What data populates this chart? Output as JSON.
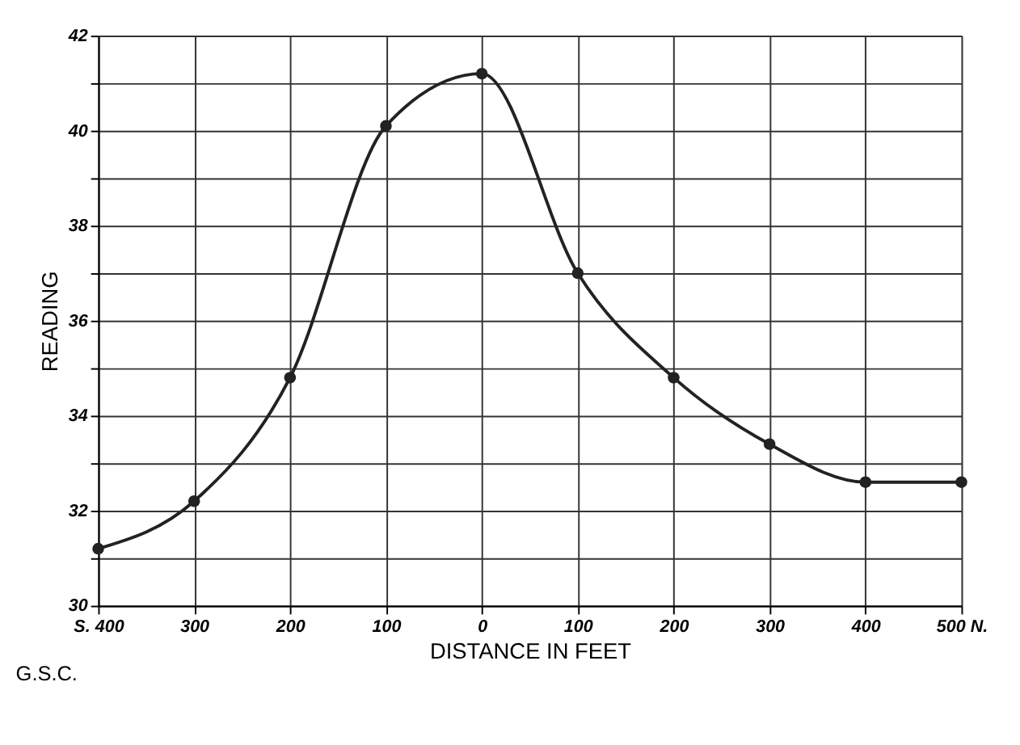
{
  "chart_data": {
    "type": "line",
    "xlabel": "DISTANCE IN FEET",
    "ylabel": "READING",
    "x": [
      -400,
      -300,
      -200,
      -100,
      0,
      100,
      200,
      300,
      400,
      500
    ],
    "series": [
      {
        "color": "#222222",
        "values": [
          31.2,
          32.2,
          34.8,
          40.1,
          41.2,
          37.0,
          34.8,
          33.4,
          32.6,
          32.6
        ]
      }
    ],
    "xlim": [
      -400,
      500
    ],
    "xticks": [
      {
        "value": -400,
        "label": "S. 400"
      },
      {
        "value": -300,
        "label": "300"
      },
      {
        "value": -200,
        "label": "200"
      },
      {
        "value": -100,
        "label": "100"
      },
      0,
      100,
      200,
      300,
      400,
      {
        "value": 500,
        "label": "500 N."
      }
    ],
    "ylim": [
      30,
      42
    ],
    "yticks": [
      30,
      {
        "value": 31,
        "label": null
      },
      32,
      {
        "value": 33,
        "label": null
      },
      34,
      {
        "value": 35,
        "label": null
      },
      36,
      {
        "value": 37,
        "label": null
      },
      38,
      {
        "value": 39,
        "label": null
      },
      40,
      {
        "value": 41,
        "label": null
      },
      42
    ],
    "grid": true,
    "marker": "circle",
    "line_style": "solid",
    "annotations": [
      "G.S.C."
    ]
  }
}
